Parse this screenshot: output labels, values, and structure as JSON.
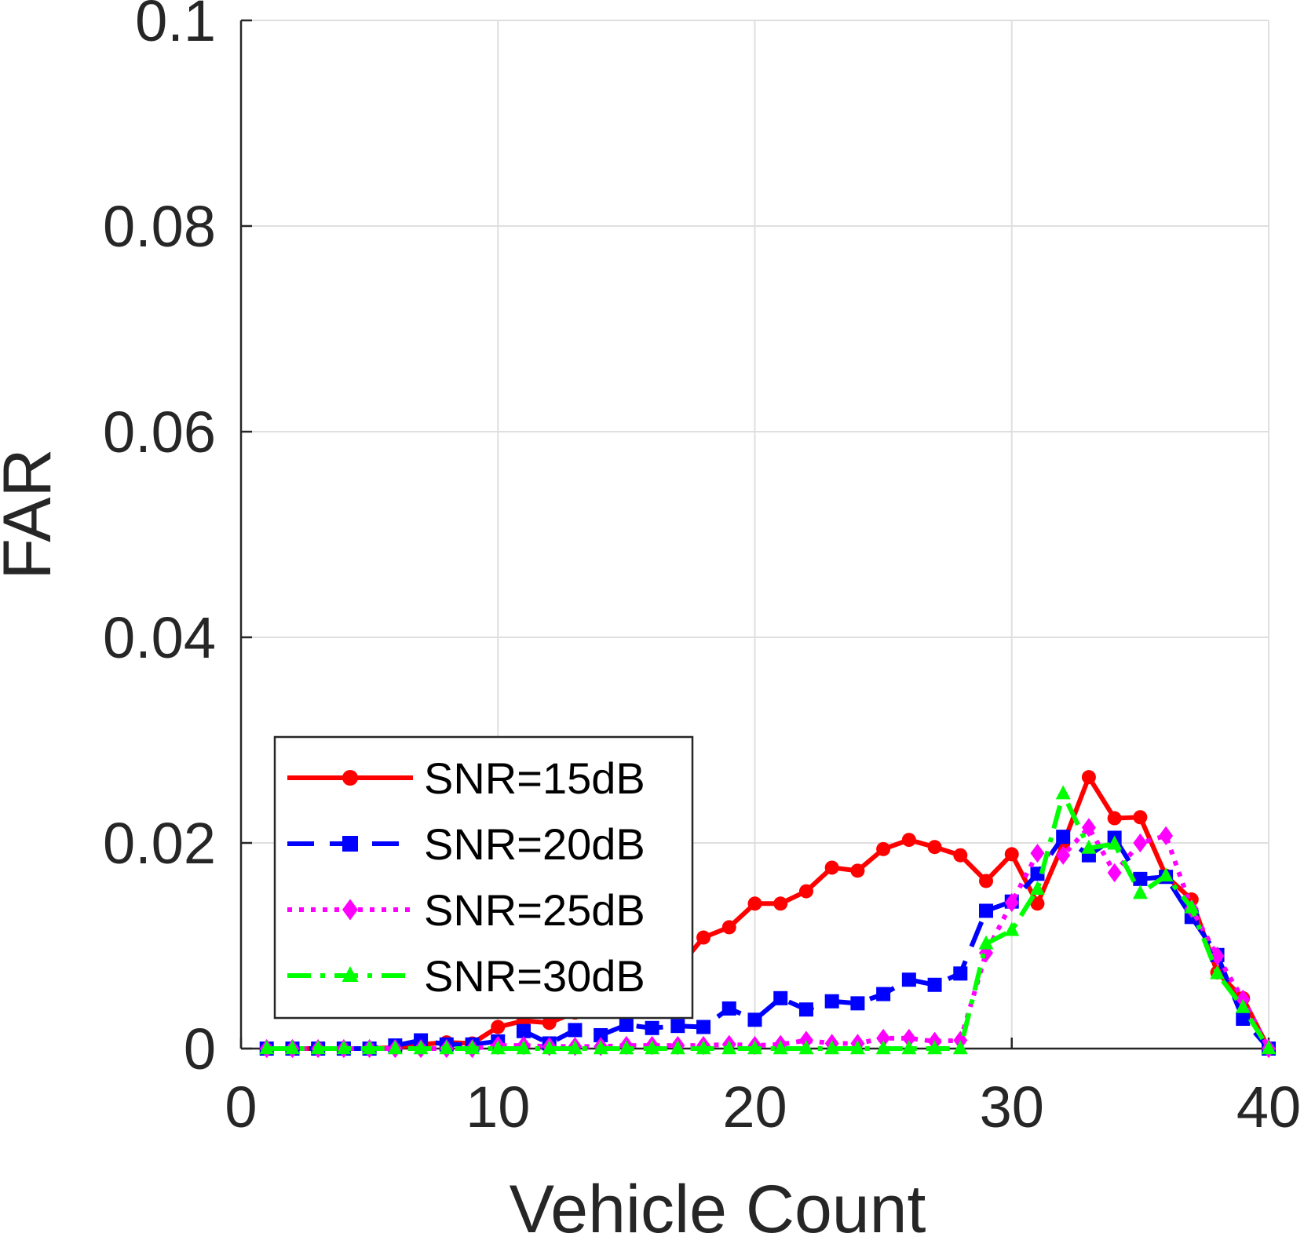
{
  "chart_data": {
    "type": "line",
    "xlabel": "Vehicle Count",
    "ylabel": "FAR",
    "xlim": [
      0,
      40
    ],
    "ylim": [
      0,
      0.1
    ],
    "xticks": [
      "0",
      "10",
      "20",
      "30",
      "40"
    ],
    "yticks": [
      "0",
      "0.02",
      "0.04",
      "0.06",
      "0.08",
      "0.1"
    ],
    "grid": true,
    "legend_position": "lower-left",
    "x": [
      1,
      2,
      3,
      4,
      5,
      6,
      7,
      8,
      9,
      10,
      11,
      12,
      13,
      14,
      15,
      16,
      17,
      18,
      19,
      20,
      21,
      22,
      23,
      24,
      25,
      26,
      27,
      28,
      29,
      30,
      31,
      32,
      33,
      34,
      35,
      36,
      37,
      38,
      39,
      40
    ],
    "series": [
      {
        "name": "SNR=15dB",
        "color": "#ff0000",
        "line_style": "solid",
        "marker": "circle",
        "values": [
          0,
          0,
          0,
          0,
          0,
          0.0001,
          0.0004,
          0.0006,
          0.0005,
          0.0021,
          0.0027,
          0.0025,
          0.0035,
          0.0045,
          0.0055,
          0.0065,
          0.0078,
          0.0108,
          0.0118,
          0.0141,
          0.0141,
          0.0153,
          0.0176,
          0.0173,
          0.0194,
          0.0203,
          0.0196,
          0.0188,
          0.0163,
          0.0189,
          0.0141,
          0.0199,
          0.0264,
          0.0224,
          0.0225,
          0.0168,
          0.0145,
          0.0074,
          0.0049,
          0
        ]
      },
      {
        "name": "SNR=20dB",
        "color": "#0000ff",
        "line_style": "dashed",
        "marker": "square",
        "values": [
          0,
          0,
          0,
          0,
          0,
          0.0003,
          0.0008,
          0.0004,
          0.0004,
          0.0007,
          0.0017,
          0.0005,
          0.0018,
          0.0013,
          0.0023,
          0.002,
          0.0022,
          0.0021,
          0.0039,
          0.0028,
          0.0049,
          0.0038,
          0.0046,
          0.0044,
          0.0053,
          0.0067,
          0.0062,
          0.0073,
          0.0134,
          0.0143,
          0.017,
          0.0206,
          0.0188,
          0.0205,
          0.0165,
          0.0167,
          0.0128,
          0.0091,
          0.0029,
          0
        ]
      },
      {
        "name": "SNR=25dB",
        "color": "#ff00ff",
        "line_style": "dotted",
        "marker": "diamond",
        "values": [
          0,
          0,
          0,
          0,
          0,
          0,
          0,
          0,
          0,
          0.0003,
          0.0003,
          0.0002,
          0.0002,
          0.0002,
          0.0003,
          0.0003,
          0.0003,
          0.0003,
          0.0004,
          0.0003,
          0.0004,
          0.0008,
          0.0005,
          0.0005,
          0.001,
          0.001,
          0.0007,
          0.0008,
          0.0093,
          0.0142,
          0.019,
          0.0188,
          0.0215,
          0.0171,
          0.02,
          0.0207,
          0.0136,
          0.009,
          0.0048,
          0
        ]
      },
      {
        "name": "SNR=30dB",
        "color": "#00ff00",
        "line_style": "dashdot",
        "marker": "triangle",
        "values": [
          0,
          0,
          0,
          0,
          0,
          0,
          0,
          0,
          0,
          0,
          0,
          0,
          0,
          0,
          0,
          0,
          0,
          0,
          0,
          0,
          0,
          0,
          0,
          0,
          0,
          0,
          0,
          0,
          0.0102,
          0.0115,
          0.0155,
          0.0248,
          0.0195,
          0.0199,
          0.0151,
          0.0168,
          0.0137,
          0.0073,
          0.004,
          0
        ]
      }
    ]
  }
}
